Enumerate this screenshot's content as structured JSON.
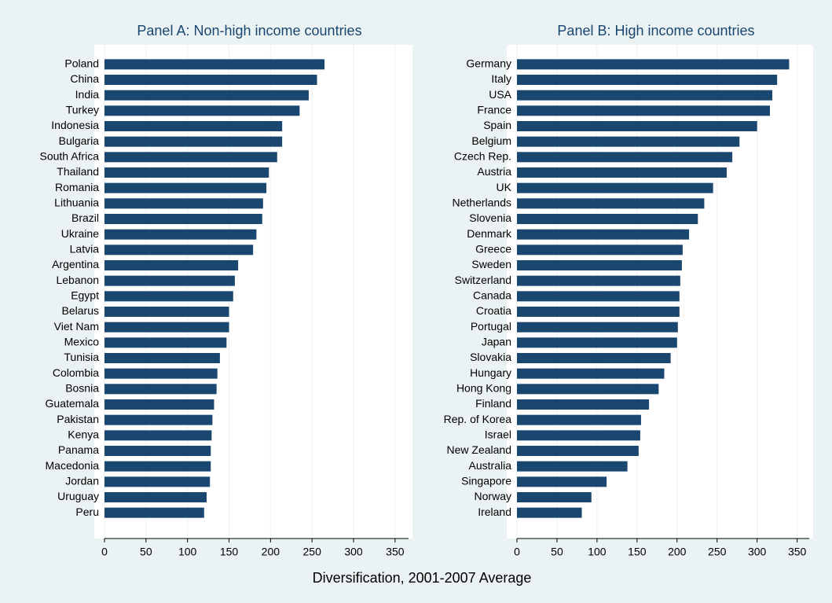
{
  "chart_data": [
    {
      "type": "bar",
      "orientation": "horizontal",
      "title": "Panel A: Non-high income countries",
      "categories": [
        "Poland",
        "China",
        "India",
        "Turkey",
        "Indonesia",
        "Bulgaria",
        "South Africa",
        "Thailand",
        "Romania",
        "Lithuania",
        "Brazil",
        "Ukraine",
        "Latvia",
        "Argentina",
        "Lebanon",
        "Egypt",
        "Belarus",
        "Viet Nam",
        "Mexico",
        "Tunisia",
        "Colombia",
        "Bosnia",
        "Guatemala",
        "Pakistan",
        "Kenya",
        "Panama",
        "Macedonia",
        "Jordan",
        "Uruguay",
        "Peru"
      ],
      "values": [
        265,
        256,
        246,
        235,
        214,
        214,
        208,
        198,
        195,
        191,
        190,
        183,
        179,
        161,
        157,
        155,
        150,
        150,
        147,
        139,
        136,
        135,
        132,
        130,
        129,
        128,
        128,
        127,
        123,
        120
      ],
      "color": "#1a476f",
      "xlim": [
        0,
        370
      ],
      "xticks": [
        0,
        50,
        100,
        150,
        200,
        250,
        300,
        350
      ],
      "grid": true
    },
    {
      "type": "bar",
      "orientation": "horizontal",
      "title": "Panel B: High income countries",
      "categories": [
        "Germany",
        "Italy",
        "USA",
        "France",
        "Spain",
        "Belgium",
        "Czech Rep.",
        "Austria",
        "UK",
        "Netherlands",
        "Slovenia",
        "Denmark",
        "Greece",
        "Sweden",
        "Switzerland",
        "Canada",
        "Croatia",
        "Portugal",
        "Japan",
        "Slovakia",
        "Hungary",
        "Hong Kong",
        "Finland",
        "Rep. of Korea",
        "Israel",
        "New Zealand",
        "Australia",
        "Singapore",
        "Norway",
        "Ireland"
      ],
      "values": [
        340,
        325,
        319,
        316,
        300,
        278,
        269,
        262,
        245,
        234,
        226,
        215,
        207,
        206,
        204,
        203,
        203,
        201,
        200,
        192,
        184,
        177,
        165,
        155,
        154,
        152,
        138,
        112,
        93,
        81
      ],
      "color": "#1a476f",
      "xlim": [
        0,
        370
      ],
      "xticks": [
        0,
        50,
        100,
        150,
        200,
        250,
        300,
        350
      ],
      "grid": true
    }
  ],
  "xlabel": "Diversification, 2001-2007 Average"
}
